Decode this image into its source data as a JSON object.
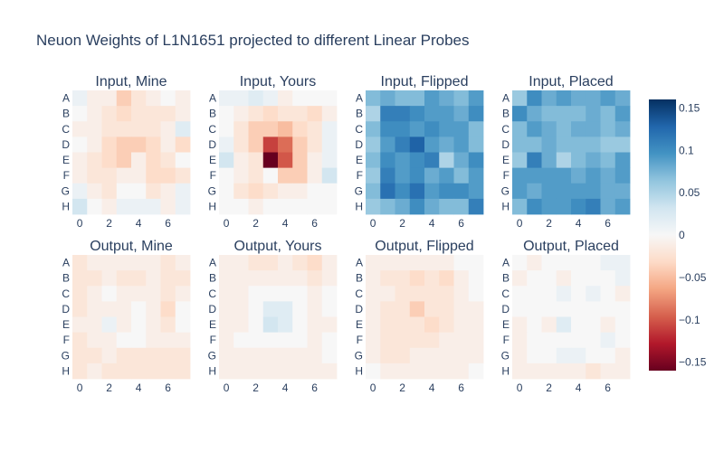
{
  "chart_data": {
    "type": "heatmap",
    "title": "Neuon Weights of L1N1651 projected to different Linear Probes",
    "row_labels": [
      "A",
      "B",
      "C",
      "D",
      "E",
      "F",
      "G",
      "H"
    ],
    "x_ticks": [
      0,
      2,
      4,
      6
    ],
    "colorbar": {
      "colorscale": "RdBu",
      "zmin": -0.16,
      "zmax": 0.16,
      "ticks": [
        0.15,
        0.1,
        0.05,
        0,
        -0.05,
        -0.1,
        -0.15
      ],
      "tick_labels": [
        "0.15",
        "0.1",
        "0.05",
        "0",
        "−0.05",
        "−0.1",
        "−0.15"
      ]
    },
    "panels": [
      {
        "title": "Input, Mine",
        "z": [
          [
            0.01,
            -0.01,
            -0.01,
            -0.04,
            -0.02,
            -0.01,
            0.0,
            -0.01
          ],
          [
            0.0,
            -0.01,
            -0.02,
            -0.03,
            -0.02,
            -0.02,
            -0.02,
            -0.01
          ],
          [
            -0.01,
            -0.01,
            -0.02,
            -0.02,
            -0.02,
            -0.02,
            -0.01,
            0.02
          ],
          [
            0.0,
            -0.01,
            -0.03,
            -0.04,
            -0.04,
            -0.03,
            -0.01,
            -0.03
          ],
          [
            -0.01,
            -0.02,
            -0.03,
            -0.04,
            -0.01,
            -0.03,
            -0.02,
            0.0
          ],
          [
            -0.01,
            -0.02,
            -0.02,
            -0.01,
            -0.01,
            -0.03,
            -0.03,
            -0.02
          ],
          [
            0.01,
            -0.01,
            -0.02,
            0.0,
            0.0,
            -0.02,
            -0.01,
            0.01
          ],
          [
            0.03,
            0.0,
            -0.01,
            0.01,
            0.01,
            0.01,
            -0.01,
            0.01
          ]
        ]
      },
      {
        "title": "Input, Yours",
        "z": [
          [
            0.01,
            0.01,
            0.02,
            0.01,
            -0.01,
            0.0,
            0.0,
            0.0
          ],
          [
            0.0,
            -0.01,
            -0.02,
            -0.03,
            -0.02,
            -0.02,
            -0.03,
            -0.01
          ],
          [
            0.0,
            -0.02,
            -0.04,
            -0.04,
            -0.05,
            -0.03,
            -0.02,
            0.01
          ],
          [
            0.01,
            -0.02,
            -0.04,
            -0.11,
            -0.09,
            -0.04,
            -0.02,
            0.01
          ],
          [
            0.03,
            -0.01,
            -0.02,
            -0.16,
            -0.1,
            -0.04,
            -0.01,
            0.01
          ],
          [
            0.0,
            -0.01,
            -0.02,
            0.0,
            -0.04,
            -0.04,
            -0.01,
            0.03
          ],
          [
            0.0,
            -0.02,
            -0.03,
            -0.02,
            -0.01,
            -0.01,
            0.0,
            0.0
          ],
          [
            0.0,
            0.0,
            -0.01,
            0.0,
            0.0,
            0.0,
            0.0,
            0.0
          ]
        ]
      },
      {
        "title": "Input, Flipped",
        "z": [
          [
            0.07,
            0.08,
            0.07,
            0.07,
            0.09,
            0.08,
            0.07,
            0.09
          ],
          [
            0.05,
            0.11,
            0.11,
            0.1,
            0.09,
            0.09,
            0.08,
            0.1
          ],
          [
            0.07,
            0.1,
            0.1,
            0.09,
            0.1,
            0.09,
            0.09,
            0.07
          ],
          [
            0.06,
            0.09,
            0.11,
            0.13,
            0.09,
            0.08,
            0.09,
            0.07
          ],
          [
            0.07,
            0.1,
            0.09,
            0.1,
            0.11,
            0.05,
            0.08,
            0.1
          ],
          [
            0.06,
            0.11,
            0.09,
            0.1,
            0.08,
            0.09,
            0.07,
            0.09
          ],
          [
            0.07,
            0.12,
            0.1,
            0.12,
            0.09,
            0.1,
            0.1,
            0.09
          ],
          [
            0.06,
            0.07,
            0.08,
            0.1,
            0.08,
            0.07,
            0.07,
            0.11
          ]
        ]
      },
      {
        "title": "Input, Placed",
        "z": [
          [
            0.06,
            0.1,
            0.08,
            0.09,
            0.08,
            0.08,
            0.09,
            0.08
          ],
          [
            0.1,
            0.08,
            0.07,
            0.07,
            0.07,
            0.08,
            0.07,
            0.09
          ],
          [
            0.07,
            0.09,
            0.08,
            0.07,
            0.08,
            0.08,
            0.07,
            0.08
          ],
          [
            0.07,
            0.07,
            0.08,
            0.07,
            0.07,
            0.07,
            0.06,
            0.06
          ],
          [
            0.06,
            0.11,
            0.08,
            0.05,
            0.07,
            0.08,
            0.07,
            0.09
          ],
          [
            0.09,
            0.09,
            0.09,
            0.09,
            0.08,
            0.09,
            0.08,
            0.09
          ],
          [
            0.09,
            0.08,
            0.09,
            0.09,
            0.09,
            0.09,
            0.08,
            0.08
          ],
          [
            0.07,
            0.1,
            0.09,
            0.09,
            0.1,
            0.11,
            0.08,
            0.09
          ]
        ]
      },
      {
        "title": "Output, Mine",
        "z": [
          [
            -0.02,
            -0.01,
            -0.01,
            -0.01,
            -0.01,
            -0.01,
            -0.02,
            -0.01
          ],
          [
            -0.02,
            -0.02,
            -0.01,
            -0.02,
            -0.02,
            -0.01,
            -0.02,
            -0.02
          ],
          [
            -0.02,
            -0.01,
            0.0,
            -0.01,
            -0.01,
            -0.01,
            -0.02,
            -0.01
          ],
          [
            -0.02,
            -0.01,
            -0.01,
            -0.01,
            0.0,
            -0.01,
            -0.03,
            0.0
          ],
          [
            -0.01,
            -0.01,
            0.01,
            -0.01,
            0.0,
            -0.01,
            -0.02,
            0.0
          ],
          [
            -0.02,
            -0.01,
            -0.01,
            0.0,
            0.0,
            -0.01,
            -0.01,
            -0.01
          ],
          [
            -0.02,
            -0.02,
            -0.01,
            -0.02,
            -0.02,
            -0.02,
            -0.02,
            -0.02
          ],
          [
            -0.02,
            -0.01,
            -0.02,
            -0.02,
            -0.02,
            -0.02,
            -0.02,
            -0.02
          ]
        ]
      },
      {
        "title": "Output, Yours",
        "z": [
          [
            -0.01,
            -0.01,
            -0.02,
            -0.02,
            -0.01,
            -0.02,
            -0.03,
            -0.01
          ],
          [
            -0.01,
            -0.01,
            -0.01,
            -0.01,
            -0.01,
            -0.01,
            -0.02,
            -0.01
          ],
          [
            -0.01,
            -0.01,
            0.0,
            0.0,
            0.0,
            0.0,
            -0.01,
            0.0
          ],
          [
            -0.01,
            -0.01,
            0.0,
            0.02,
            0.02,
            0.0,
            -0.01,
            0.0
          ],
          [
            -0.01,
            -0.01,
            0.0,
            0.03,
            0.02,
            0.0,
            -0.01,
            -0.01
          ],
          [
            -0.01,
            0.0,
            0.0,
            0.0,
            0.0,
            0.0,
            -0.01,
            0.0
          ],
          [
            -0.01,
            -0.01,
            -0.01,
            -0.01,
            -0.01,
            -0.01,
            -0.01,
            0.0
          ],
          [
            -0.01,
            -0.01,
            -0.01,
            -0.01,
            -0.01,
            -0.01,
            -0.01,
            -0.01
          ]
        ]
      },
      {
        "title": "Output, Flipped",
        "z": [
          [
            -0.01,
            -0.01,
            -0.01,
            -0.01,
            -0.01,
            -0.01,
            0.0,
            0.0
          ],
          [
            -0.01,
            -0.02,
            -0.02,
            -0.03,
            -0.02,
            -0.03,
            -0.01,
            0.0
          ],
          [
            -0.01,
            -0.01,
            -0.02,
            -0.02,
            -0.02,
            -0.02,
            -0.01,
            0.0
          ],
          [
            -0.01,
            -0.02,
            -0.02,
            -0.04,
            -0.02,
            -0.02,
            -0.01,
            -0.01
          ],
          [
            -0.01,
            -0.02,
            -0.02,
            -0.02,
            -0.03,
            -0.02,
            -0.01,
            -0.01
          ],
          [
            -0.01,
            -0.02,
            -0.02,
            -0.02,
            -0.02,
            -0.01,
            -0.01,
            -0.01
          ],
          [
            -0.01,
            -0.02,
            -0.02,
            -0.01,
            -0.01,
            -0.01,
            -0.01,
            -0.01
          ],
          [
            0.0,
            -0.01,
            -0.01,
            -0.01,
            -0.01,
            -0.01,
            -0.01,
            0.0
          ]
        ]
      },
      {
        "title": "Output, Placed",
        "z": [
          [
            0.0,
            -0.01,
            0.0,
            0.0,
            0.0,
            0.0,
            0.01,
            0.01
          ],
          [
            -0.01,
            0.0,
            0.0,
            -0.01,
            0.0,
            0.0,
            0.0,
            0.01
          ],
          [
            0.0,
            0.0,
            0.0,
            0.01,
            0.0,
            0.01,
            0.0,
            -0.01
          ],
          [
            0.0,
            0.0,
            0.0,
            0.0,
            0.0,
            0.0,
            0.0,
            0.0
          ],
          [
            -0.01,
            0.0,
            -0.01,
            0.02,
            0.0,
            0.0,
            -0.01,
            0.0
          ],
          [
            -0.01,
            0.0,
            0.0,
            0.0,
            0.0,
            0.0,
            0.01,
            0.0
          ],
          [
            -0.01,
            0.0,
            0.0,
            0.01,
            0.01,
            0.0,
            0.0,
            -0.01
          ],
          [
            -0.01,
            -0.01,
            -0.01,
            -0.01,
            -0.01,
            -0.02,
            -0.01,
            -0.01
          ]
        ]
      }
    ]
  }
}
